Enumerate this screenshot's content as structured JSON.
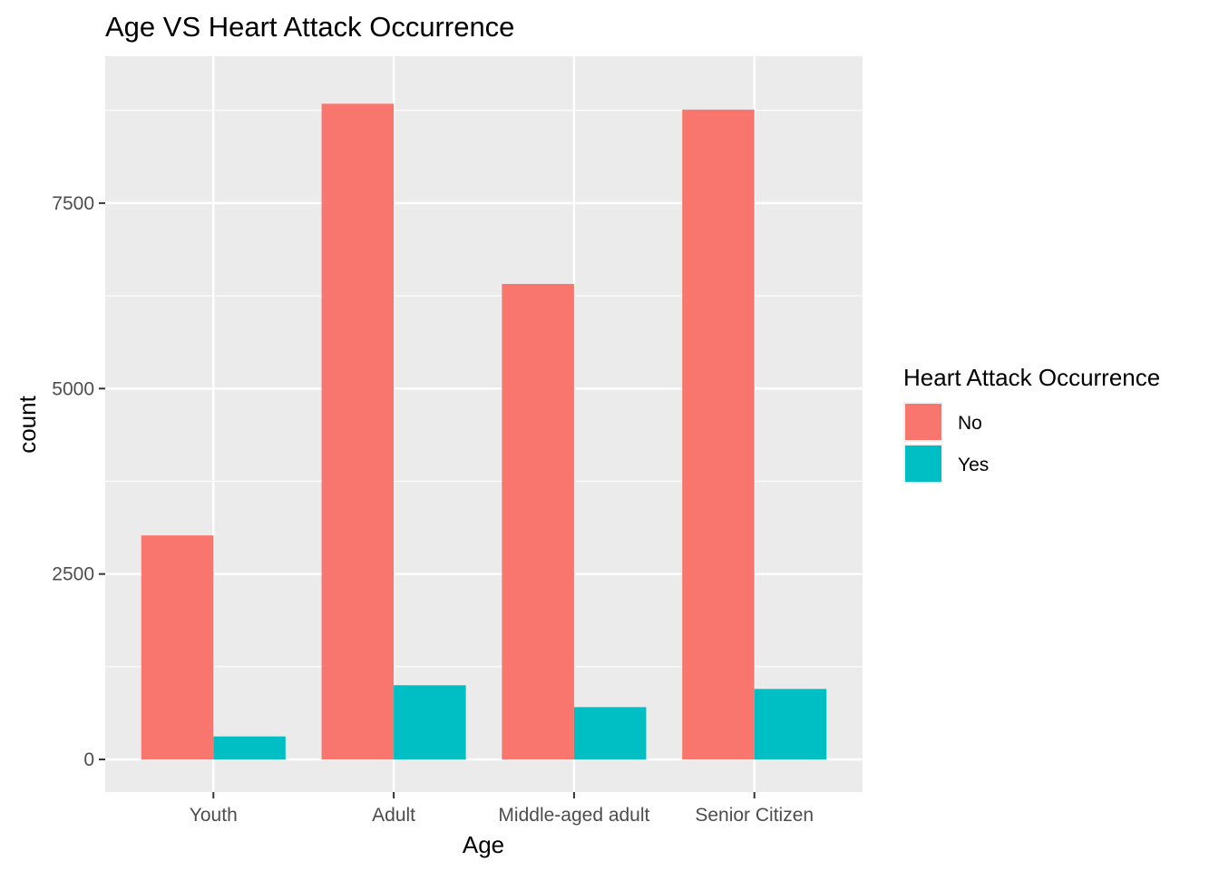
{
  "chart_data": {
    "type": "bar",
    "title": "Age VS Heart Attack Occurrence",
    "xlabel": "Age",
    "ylabel": "count",
    "categories": [
      "Youth",
      "Adult",
      "Middle-aged adult",
      "Senior Citizen"
    ],
    "series": [
      {
        "name": "No",
        "color": "#F8766D",
        "values": [
          3020,
          8840,
          6410,
          8760
        ]
      },
      {
        "name": "Yes",
        "color": "#00BFC4",
        "values": [
          310,
          1000,
          705,
          950
        ]
      }
    ],
    "ylim": [
      -440,
      9480
    ],
    "yticks": [
      0,
      2500,
      5000,
      7500
    ],
    "ytick_labels": [
      "0",
      "2500",
      "5000",
      "7500"
    ],
    "grid": true,
    "panel_background": "#EBEBEB",
    "legend": {
      "title": "Heart Attack Occurrence",
      "position": "right"
    }
  }
}
